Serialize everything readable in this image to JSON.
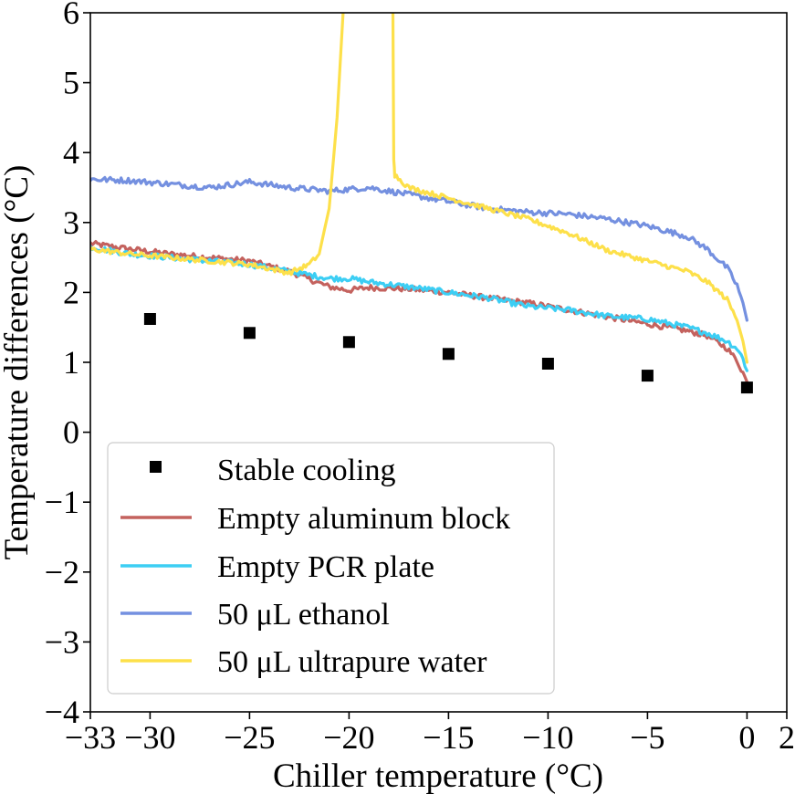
{
  "chart_data": {
    "type": "line",
    "xlabel": "Chiller temperature (°C)",
    "ylabel": "Temperature differences (°C)",
    "xlim": [
      -33,
      2
    ],
    "ylim": [
      -4,
      6
    ],
    "x_ticks": [
      -33,
      -30,
      -25,
      -20,
      -15,
      -10,
      -5,
      0,
      2
    ],
    "x_tick_labels": [
      "−33",
      "−30",
      "−25",
      "−20",
      "−15",
      "−10",
      "−5",
      "0",
      "2"
    ],
    "y_ticks": [
      -4,
      -3,
      -2,
      -1,
      0,
      1,
      2,
      3,
      4,
      5,
      6
    ],
    "y_tick_labels": [
      "−4",
      "−3",
      "−2",
      "−1",
      "0",
      "1",
      "2",
      "3",
      "4",
      "5",
      "6"
    ],
    "grid": false,
    "legend_position": "lower-left",
    "scatter_series": {
      "name": "Stable cooling",
      "color": "#000000",
      "marker": "square",
      "x": [
        -30,
        -25,
        -20,
        -15,
        -10,
        -5,
        0
      ],
      "y": [
        1.62,
        1.42,
        1.29,
        1.12,
        0.98,
        0.81,
        0.64
      ]
    },
    "series": [
      {
        "name": "Empty aluminum block",
        "color": "#c4625e",
        "noise": 0.04,
        "x": [
          -33,
          -31,
          -29,
          -27,
          -25,
          -23,
          -21,
          -20,
          -19,
          -17,
          -15,
          -13,
          -11,
          -9,
          -7,
          -5,
          -3,
          -2,
          -1,
          -0.5,
          -0.2,
          0
        ],
        "y": [
          2.7,
          2.62,
          2.55,
          2.5,
          2.45,
          2.3,
          2.08,
          2.03,
          2.07,
          2.05,
          2.0,
          1.92,
          1.85,
          1.75,
          1.65,
          1.55,
          1.45,
          1.38,
          1.2,
          1.02,
          0.85,
          0.72
        ]
      },
      {
        "name": "Empty PCR plate",
        "color": "#3ccef4",
        "noise": 0.04,
        "x": [
          -33,
          -31,
          -29,
          -27,
          -25,
          -23,
          -21,
          -20,
          -19,
          -17,
          -15,
          -13,
          -11,
          -9,
          -7,
          -5,
          -3,
          -2,
          -1,
          -0.5,
          -0.2,
          0
        ],
        "y": [
          2.65,
          2.55,
          2.5,
          2.45,
          2.4,
          2.3,
          2.2,
          2.2,
          2.15,
          2.08,
          2.0,
          1.92,
          1.8,
          1.75,
          1.66,
          1.62,
          1.5,
          1.42,
          1.3,
          1.2,
          1.05,
          0.88
        ]
      },
      {
        "name": "50 μL ethanol",
        "color": "#7490e0",
        "noise": 0.04,
        "x": [
          -33,
          -31,
          -29,
          -27,
          -25,
          -23,
          -21,
          -19,
          -17,
          -15,
          -13,
          -11,
          -9,
          -7,
          -5,
          -3,
          -2,
          -1,
          -0.5,
          -0.2,
          0
        ],
        "y": [
          3.62,
          3.6,
          3.55,
          3.5,
          3.58,
          3.5,
          3.45,
          3.5,
          3.4,
          3.3,
          3.2,
          3.15,
          3.12,
          3.05,
          2.95,
          2.8,
          2.62,
          2.35,
          2.1,
          1.85,
          1.6
        ]
      },
      {
        "name": "50 μL ultrapure water",
        "color": "#fde04a",
        "noise": 0.035,
        "x": [
          -33,
          -31,
          -29,
          -27,
          -25,
          -23,
          -22,
          -21.5,
          -21.0,
          -20.6,
          -20.3,
          -20.2,
          -17.8,
          -17.75,
          -17.7,
          -17,
          -15,
          -13,
          -11,
          -9,
          -7,
          -5,
          -3,
          -2,
          -1,
          -0.5,
          -0.2,
          0
        ],
        "y": [
          2.62,
          2.55,
          2.5,
          2.45,
          2.4,
          2.28,
          2.4,
          2.55,
          3.2,
          4.5,
          6.0,
          6.2,
          6.2,
          3.9,
          3.68,
          3.5,
          3.35,
          3.2,
          3.05,
          2.85,
          2.6,
          2.45,
          2.3,
          2.15,
          1.9,
          1.6,
          1.3,
          1.0
        ]
      }
    ]
  }
}
